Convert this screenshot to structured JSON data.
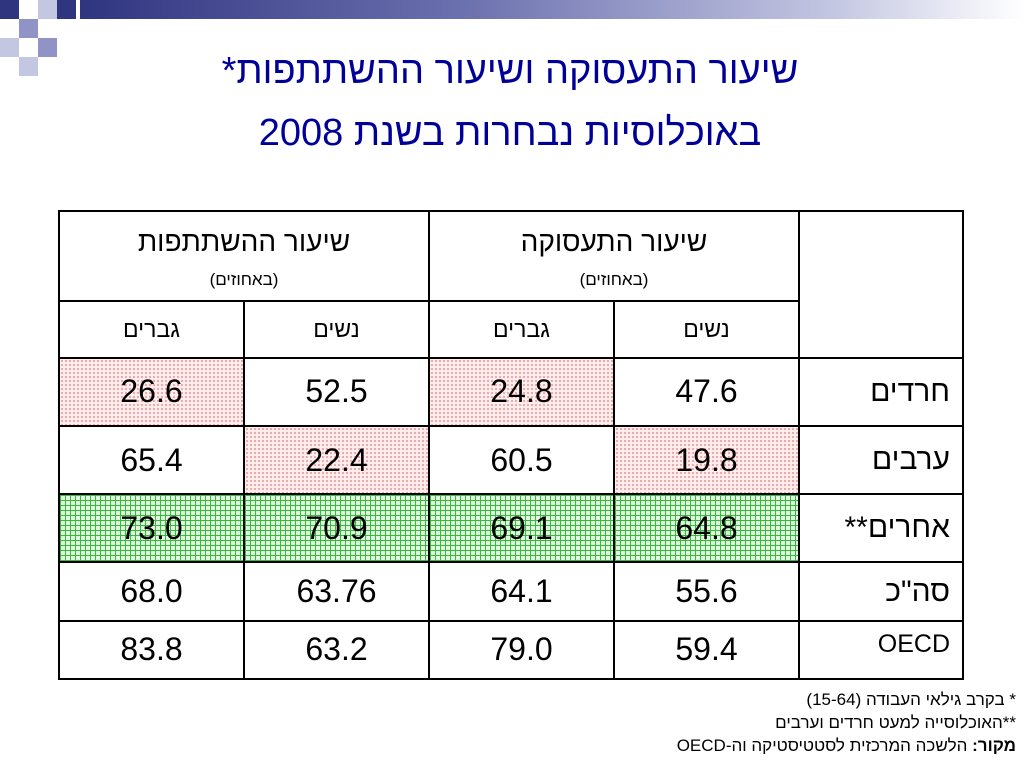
{
  "title": {
    "line1": "שיעור התעסוקה ושיעור ההשתתפות*",
    "line2": "באוכלוסיות נבחרות בשנת 2008"
  },
  "table": {
    "groups": [
      {
        "title": "שיעור התעסוקה",
        "subtitle": "(באחוזים)"
      },
      {
        "title": "שיעור ההשתתפות",
        "subtitle": "(באחוזים)"
      }
    ],
    "subheaders": [
      "נשים",
      "גברים",
      "נשים",
      "גברים"
    ],
    "rows": [
      {
        "label": "חרדים",
        "values": [
          "47.6",
          "24.8",
          "52.5",
          "26.6"
        ]
      },
      {
        "label": "ערבים",
        "values": [
          "19.8",
          "60.5",
          "22.4",
          "65.4"
        ]
      },
      {
        "label": "אחרים**",
        "values": [
          "64.8",
          "69.1",
          "70.9",
          "73.0"
        ]
      },
      {
        "label": "סה\"כ",
        "values": [
          "55.6",
          "64.1",
          "63.76",
          "68.0"
        ]
      },
      {
        "label": "OECD",
        "values": [
          "59.4",
          "79.0",
          "63.2",
          "83.8"
        ]
      }
    ]
  },
  "notes": {
    "note1": "* בקרב גילאי העבודה (15-64)",
    "note2": "**האוכלוסייה למעט חרדים וערבים",
    "source_label": "מקור:",
    "source_text": " הלשכה המרכזית לסטטיסטיקה וה-OECD"
  },
  "colors": {
    "title": "#000099",
    "highlight_pink": "#ffeded",
    "highlight_green": "#dff6df"
  }
}
